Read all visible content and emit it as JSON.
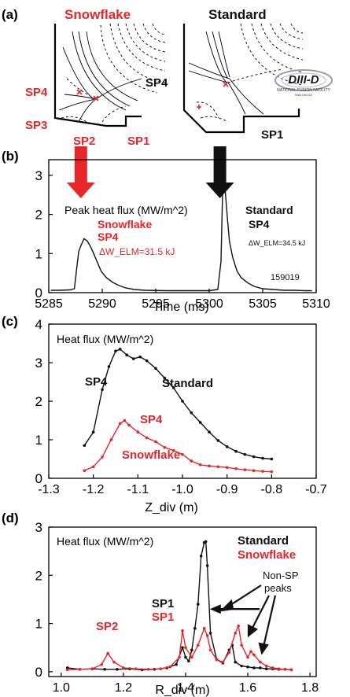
{
  "colors": {
    "red": "#e8262a",
    "black": "#111111",
    "frame": "#000000"
  },
  "panel_a": {
    "label": "(a)",
    "left_title": "Snowflake",
    "right_title": "Standard",
    "left_sp_labels": [
      "SP4",
      "SP3",
      "SP2",
      "SP1"
    ],
    "right_sp_labels": [
      "SP4",
      "SP1"
    ],
    "logo_text": "DIII-D",
    "logo_subtext": "NATIONAL FUSION FACILITY",
    "logo_subtext2": "SAN DIEGO",
    "arrows": [
      {
        "color_key": "red",
        "points_to_time_ms": 5288
      },
      {
        "color_key": "black",
        "points_to_time_ms": 5301
      }
    ]
  },
  "chart_data": [
    {
      "panel": "(b)",
      "type": "line",
      "xlabel": "Time (ms)",
      "ylabel": "",
      "xlim": [
        5285,
        5310
      ],
      "ylim": [
        0,
        3.4
      ],
      "xticks": [
        "5285",
        "5290",
        "5295",
        "5300",
        "5305",
        "5310"
      ],
      "yticks": [
        "0",
        "1",
        "2",
        "3"
      ],
      "annotations": {
        "inner_title": "Peak heat flux (MW/m^2)",
        "sf_name": "Snowflake",
        "sf_sp": "SP4",
        "sf_dw": "ΔW_ELM=31.5 kJ",
        "std_name": "Standard",
        "std_sp": "SP4",
        "std_dw": "ΔW_ELM=34.5 kJ",
        "shot": "159019"
      },
      "series": [
        {
          "color_key": "black",
          "x": [
            5285.2,
            5286,
            5287,
            5287.4,
            5287.6,
            5287.8,
            5288,
            5288.3,
            5288.6,
            5288.9,
            5289.2,
            5289.5,
            5289.9,
            5290.4,
            5291,
            5291.6,
            5292.2,
            5293,
            5294,
            5296,
            5298,
            5300,
            5300.8,
            5301.1,
            5301.3,
            5301.5,
            5301.7,
            5301.9,
            5302.2,
            5302.6,
            5303,
            5303.6,
            5304.2,
            5305,
            5306,
            5307,
            5308,
            5309,
            5309.6
          ],
          "y": [
            0.06,
            0.06,
            0.07,
            0.1,
            0.6,
            1.05,
            1.2,
            1.38,
            1.32,
            1.18,
            1.0,
            0.8,
            0.55,
            0.38,
            0.26,
            0.18,
            0.12,
            0.08,
            0.06,
            0.05,
            0.05,
            0.05,
            0.08,
            0.8,
            3.2,
            2.6,
            1.9,
            1.3,
            0.9,
            0.55,
            0.38,
            0.25,
            0.16,
            0.1,
            0.08,
            0.06,
            0.06,
            0.05,
            0.05
          ]
        }
      ]
    },
    {
      "panel": "(c)",
      "type": "line",
      "xlabel": "Z_div (m)",
      "ylabel": "",
      "xlim": [
        -1.3,
        -0.7
      ],
      "ylim": [
        0,
        4
      ],
      "xticks": [
        "-1.3",
        "-1.2",
        "-1.1",
        "-1.0",
        "-0.9",
        "-0.8",
        "-0.7"
      ],
      "yticks": [
        "0",
        "1",
        "2",
        "3",
        "4"
      ],
      "annotations": {
        "inner_title": "Heat flux (MW/m^2)",
        "std_sp": "SP4",
        "std_name": "Standard",
        "sf_sp": "SP4",
        "sf_name": "Snowflake"
      },
      "series": [
        {
          "color_key": "black",
          "x": [
            -1.22,
            -1.2,
            -1.18,
            -1.165,
            -1.15,
            -1.14,
            -1.125,
            -1.11,
            -1.095,
            -1.08,
            -1.06,
            -1.04,
            -1.02,
            -1.0,
            -0.98,
            -0.96,
            -0.94,
            -0.92,
            -0.9,
            -0.88,
            -0.86,
            -0.84,
            -0.82,
            -0.8
          ],
          "y": [
            0.85,
            1.2,
            2.3,
            2.9,
            3.3,
            3.35,
            3.2,
            3.1,
            3.15,
            3.05,
            2.85,
            2.6,
            2.35,
            2.0,
            1.7,
            1.45,
            1.2,
            0.98,
            0.82,
            0.7,
            0.62,
            0.56,
            0.52,
            0.5
          ]
        },
        {
          "color_key": "red",
          "x": [
            -1.22,
            -1.2,
            -1.18,
            -1.16,
            -1.14,
            -1.13,
            -1.12,
            -1.1,
            -1.08,
            -1.06,
            -1.04,
            -1.02,
            -1.0,
            -0.98,
            -0.96,
            -0.94,
            -0.92,
            -0.9,
            -0.88,
            -0.86,
            -0.84,
            -0.82,
            -0.8
          ],
          "y": [
            0.2,
            0.3,
            0.55,
            1.0,
            1.42,
            1.5,
            1.38,
            1.2,
            1.05,
            0.95,
            0.8,
            0.72,
            0.62,
            0.45,
            0.35,
            0.32,
            0.3,
            0.28,
            0.25,
            0.22,
            0.2,
            0.18,
            0.17
          ]
        }
      ]
    },
    {
      "panel": "(d)",
      "type": "line",
      "xlabel": "R_div (m)",
      "ylabel": "",
      "xlim": [
        0.96,
        1.82
      ],
      "ylim": [
        -0.1,
        3
      ],
      "xticks": [
        "1.0",
        "1.2",
        "1.4",
        "1.6",
        "1.8"
      ],
      "yticks": [
        "0",
        "1",
        "2",
        "3"
      ],
      "annotations": {
        "inner_title": "Heat flux (MW/m^2)",
        "std_name": "Standard",
        "sf_name": "Snowflake",
        "nonsp": "Non-SP",
        "nonsp2": "peaks",
        "sp2": "SP2",
        "sp1_std": "SP1",
        "sp1_sf": "SP1"
      },
      "series": [
        {
          "color_key": "black",
          "x": [
            1.02,
            1.06,
            1.1,
            1.14,
            1.18,
            1.22,
            1.26,
            1.3,
            1.34,
            1.37,
            1.39,
            1.4,
            1.41,
            1.42,
            1.43,
            1.44,
            1.45,
            1.46,
            1.465,
            1.47,
            1.48,
            1.5,
            1.52,
            1.54,
            1.55,
            1.56,
            1.58,
            1.6,
            1.62,
            1.64,
            1.66,
            1.68,
            1.7,
            1.72,
            1.74
          ],
          "y": [
            0.08,
            0.05,
            0.06,
            0.05,
            0.05,
            0.06,
            0.04,
            0.05,
            0.08,
            0.15,
            0.5,
            0.3,
            0.22,
            0.45,
            0.9,
            1.4,
            2.4,
            2.68,
            2.7,
            2.2,
            0.8,
            0.25,
            0.18,
            0.45,
            0.55,
            0.2,
            0.12,
            0.1,
            0.08,
            0.08,
            0.06,
            0.06,
            0.05,
            0.05,
            0.04
          ]
        },
        {
          "color_key": "red",
          "x": [
            1.02,
            1.06,
            1.1,
            1.13,
            1.15,
            1.17,
            1.2,
            1.24,
            1.28,
            1.32,
            1.35,
            1.38,
            1.39,
            1.4,
            1.42,
            1.44,
            1.46,
            1.47,
            1.48,
            1.5,
            1.52,
            1.54,
            1.56,
            1.57,
            1.58,
            1.6,
            1.61,
            1.62,
            1.64,
            1.66,
            1.68,
            1.7,
            1.72,
            1.74
          ],
          "y": [
            0.04,
            0.05,
            0.06,
            0.15,
            0.38,
            0.2,
            0.08,
            0.06,
            0.05,
            0.06,
            0.1,
            0.3,
            0.85,
            0.5,
            0.3,
            0.55,
            0.9,
            0.75,
            0.45,
            0.25,
            0.2,
            0.4,
            0.8,
            0.95,
            0.55,
            0.3,
            0.42,
            0.35,
            0.2,
            0.12,
            0.08,
            0.06,
            0.05,
            0.04
          ]
        }
      ]
    }
  ]
}
